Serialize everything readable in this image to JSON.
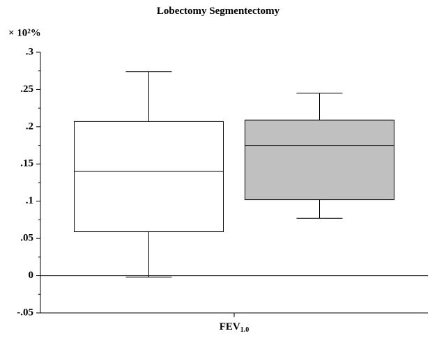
{
  "chart_data": {
    "type": "box",
    "ylabel": "× 10²%",
    "xlabel": "FEV",
    "xlabel_subscript": "1.0",
    "series": [
      {
        "name": "Lobectomy",
        "color": "#ffffff",
        "whisker_low": -0.002,
        "q1": 0.059,
        "median": 0.14,
        "q3": 0.207,
        "whisker_high": 0.274
      },
      {
        "name": "Segmentectomy",
        "color": "#c0c0c0",
        "whisker_low": 0.077,
        "q1": 0.102,
        "median": 0.175,
        "q3": 0.209,
        "whisker_high": 0.245
      }
    ],
    "ylim": [
      -0.05,
      0.3
    ],
    "yticks": [
      {
        "value": -0.05,
        "label": "-.05"
      },
      0,
      {
        "value": 0.05,
        "label": ".05"
      },
      {
        "value": 0.1,
        "label": ".1"
      },
      {
        "value": 0.15,
        "label": ".15"
      },
      {
        "value": 0.2,
        "label": ".2"
      },
      {
        "value": 0.25,
        "label": ".25"
      },
      {
        "value": 0.3,
        "label": ".3"
      }
    ],
    "yminorticks": [
      -0.025,
      0.025,
      0.075,
      0.125,
      0.175,
      0.225,
      0.275
    ],
    "reference_line": 0
  }
}
